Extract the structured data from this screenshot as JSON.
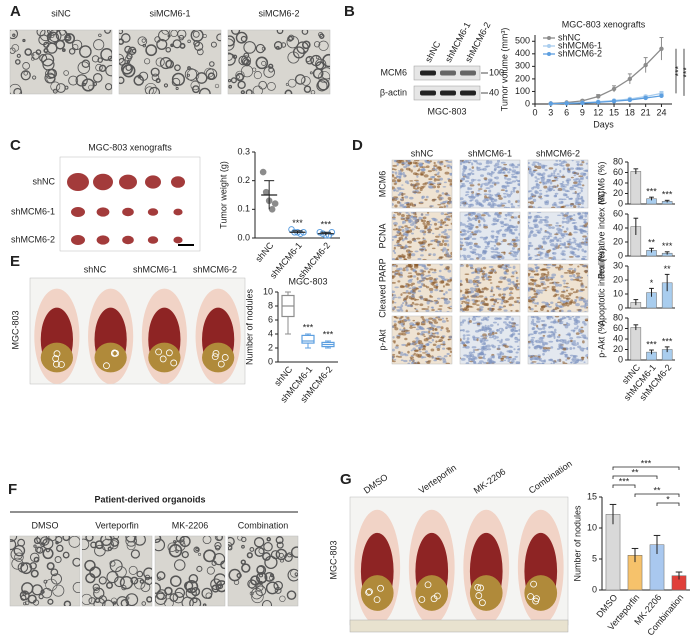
{
  "figure": {
    "A": {
      "label": "A",
      "conditions": [
        "siNC",
        "siMCM6-1",
        "siMCM6-2"
      ]
    },
    "B": {
      "label": "B",
      "lanes": [
        "shNC",
        "shMCM6-1",
        "shMCM6-2"
      ],
      "proteins": [
        "MCM6",
        "β-actin"
      ],
      "markers": [
        "100",
        "40"
      ],
      "cell_line": "MGC-803"
    },
    "C": {
      "label": "C",
      "title": "MGC-803 xenografts",
      "groups": [
        "shNC",
        "shMCM6-1",
        "shMCM6-2"
      ]
    },
    "D": {
      "label": "D",
      "groups": [
        "shNC",
        "shMCM6-1",
        "shMCM6-2"
      ],
      "stains": [
        "MCM6",
        "PCNA",
        "Cleaved PARP",
        "p-Akt"
      ]
    },
    "E": {
      "label": "E",
      "groups": [
        "shNC",
        "shMCM6-1",
        "shMCM6-2"
      ],
      "cell_line": "MGC-803"
    },
    "F": {
      "label": "F",
      "title": "Patient-derived organoids",
      "treatments": [
        "DMSO",
        "Verteporfin",
        "MK-2206",
        "Combination"
      ]
    },
    "G": {
      "label": "G",
      "treatments": [
        "DMSO",
        "Verteporfin",
        "MK-2206",
        "Combination"
      ],
      "cell_line": "MGC-803"
    }
  },
  "chart_data": [
    {
      "type": "line",
      "title": "MGC-803 xenografts",
      "x_label": "Days",
      "y_label": "Tumor volume (mm³)",
      "x": [
        3,
        6,
        9,
        12,
        15,
        18,
        21,
        24
      ],
      "xlim": [
        0,
        26
      ],
      "xticks": [
        0,
        3,
        6,
        9,
        12,
        15,
        18,
        21,
        24
      ],
      "ylim": [
        0,
        550
      ],
      "yticks": [
        0,
        100,
        200,
        300,
        400,
        500
      ],
      "legend": "upper-left",
      "series": [
        {
          "name": "shNC",
          "color": "#8c8c8c",
          "values": [
            5,
            12,
            25,
            60,
            120,
            200,
            310,
            440
          ],
          "errors": [
            2,
            4,
            8,
            15,
            25,
            40,
            60,
            90
          ]
        },
        {
          "name": "shMCM6-1",
          "color": "#a9cdee",
          "values": [
            3,
            6,
            10,
            18,
            28,
            40,
            60,
            85
          ],
          "errors": [
            1,
            2,
            3,
            5,
            6,
            8,
            10,
            15
          ]
        },
        {
          "name": "shMCM6-2",
          "color": "#5d9fe0",
          "values": [
            3,
            5,
            8,
            14,
            22,
            32,
            48,
            65
          ],
          "errors": [
            1,
            2,
            3,
            4,
            5,
            7,
            9,
            12
          ]
        }
      ],
      "annotations": [
        "***",
        "***"
      ]
    },
    {
      "type": "dot",
      "y_label": "Tumor weight (g)",
      "categories": [
        "shNC",
        "shMCM6-1",
        "shMCM6-2"
      ],
      "points": [
        [
          0.23,
          0.16,
          0.13,
          0.1,
          0.12
        ],
        [
          0.03,
          0.02,
          0.02,
          0.015,
          0.02
        ],
        [
          0.02,
          0.015,
          0.01,
          0.01,
          0.02
        ]
      ],
      "values": [
        0.15,
        0.02,
        0.015
      ],
      "errors": [
        0.05,
        0.005,
        0.005
      ],
      "ylim": [
        0,
        0.3
      ],
      "yticks": [
        {
          "value": 0,
          "label": "0.0"
        },
        0.1,
        0.2,
        0.3
      ],
      "colors": [
        "#8c8c8c",
        "#5d9fe0",
        "#5d9fe0"
      ],
      "significance": [
        null,
        "***",
        "***"
      ]
    },
    {
      "type": "bar",
      "y_label": "MCM6 (%)",
      "values": [
        62,
        10,
        5
      ],
      "errors": [
        5,
        3,
        2
      ],
      "ylim": [
        0,
        80
      ],
      "yticks": [
        0,
        20,
        40,
        60,
        80
      ],
      "colors": [
        "#d9d9d9",
        "#a9cdee",
        "#a9cdee"
      ],
      "significance": [
        null,
        "***",
        "***"
      ]
    },
    {
      "type": "bar",
      "y_label": "Proliferative index (%)",
      "values": [
        42,
        8,
        4
      ],
      "errors": [
        12,
        3,
        2
      ],
      "ylim": [
        0,
        60
      ],
      "yticks": [
        0,
        20,
        40,
        60
      ],
      "colors": [
        "#d9d9d9",
        "#a9cdee",
        "#a9cdee"
      ],
      "significance": [
        null,
        "**",
        "***"
      ]
    },
    {
      "type": "bar",
      "y_label": "Apoptotic index (%)",
      "values": [
        4,
        11,
        18
      ],
      "errors": [
        2,
        3,
        6
      ],
      "ylim": [
        0,
        30
      ],
      "yticks": [
        0,
        10,
        20,
        30
      ],
      "colors": [
        "#d9d9d9",
        "#a9cdee",
        "#a9cdee"
      ],
      "significance": [
        null,
        "*",
        "**"
      ]
    },
    {
      "type": "bar",
      "y_label": "p-Akt (%)",
      "categories": [
        "shNC",
        "shMCM6-1",
        "shMCM6-2"
      ],
      "values": [
        62,
        15,
        20
      ],
      "errors": [
        5,
        4,
        5
      ],
      "ylim": [
        0,
        80
      ],
      "yticks": [
        0,
        20,
        40,
        60,
        80
      ],
      "colors": [
        "#d9d9d9",
        "#a9cdee",
        "#a9cdee"
      ],
      "significance": [
        null,
        "***",
        "***"
      ]
    },
    {
      "type": "box",
      "title": "MGC-803",
      "y_label": "Number of nodules",
      "categories": [
        "shNC",
        "shMCM6-1",
        "shMCM6-2"
      ],
      "boxes": [
        {
          "min": 4,
          "q1": 6.5,
          "median": 8,
          "q3": 9.5,
          "max": 10
        },
        {
          "min": 2,
          "q1": 2.7,
          "median": 3,
          "q3": 3.8,
          "max": 4
        },
        {
          "min": 2,
          "q1": 2.2,
          "median": 2.5,
          "q3": 2.8,
          "max": 3
        }
      ],
      "ylim": [
        0,
        10
      ],
      "yticks": [
        0,
        2,
        4,
        6,
        8,
        10
      ],
      "colors": [
        "#8c8c8c",
        "#5d9fe0",
        "#5d9fe0"
      ],
      "significance": [
        null,
        "***",
        "***"
      ]
    },
    {
      "type": "bar",
      "y_label": "Number of nodules",
      "categories": [
        "DMSO",
        "Verteporfin",
        "MK-2206",
        "Combination"
      ],
      "values": [
        12.2,
        5.6,
        7.3,
        2.3
      ],
      "errors": [
        1.6,
        1.1,
        1.5,
        0.6
      ],
      "ylim": [
        0,
        15
      ],
      "yticks": [
        0,
        5,
        10,
        15
      ],
      "colors": [
        "#d9d9d9",
        "#f6c26b",
        "#a9c8ef",
        "#e0403a"
      ],
      "comparisons": [
        {
          "pair": [
            0,
            3
          ],
          "label": "***"
        },
        {
          "pair": [
            0,
            2
          ],
          "label": "**"
        },
        {
          "pair": [
            0,
            1
          ],
          "label": "***"
        },
        {
          "pair": [
            1,
            3
          ],
          "label": "**"
        },
        {
          "pair": [
            2,
            3
          ],
          "label": "*"
        }
      ]
    }
  ]
}
